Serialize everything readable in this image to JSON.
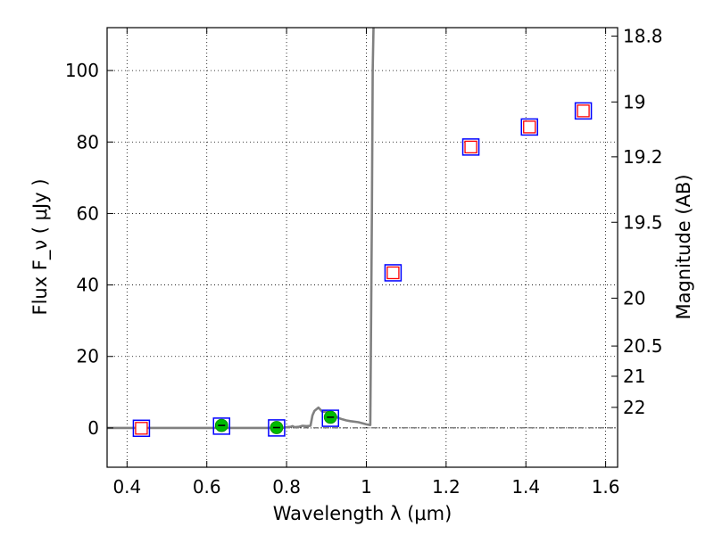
{
  "chart_data": {
    "type": "scatter",
    "title": "",
    "xlabel": "Wavelength  λ (μm)",
    "ylabel": "Flux  F_ν  ( μJy )",
    "y2label": "Magnitude (AB)",
    "xlim": [
      0.35,
      1.63
    ],
    "ylim": [
      -11,
      112
    ],
    "grid": true,
    "legend": "none",
    "xticks": [
      {
        "value": 0.4,
        "label": "0.4"
      },
      {
        "value": 0.6,
        "label": "0.6"
      },
      {
        "value": 0.8,
        "label": "0.8"
      },
      {
        "value": 1.0,
        "label": "1"
      },
      {
        "value": 1.2,
        "label": "1.2"
      },
      {
        "value": 1.4,
        "label": "1.4"
      },
      {
        "value": 1.6,
        "label": "1.6"
      }
    ],
    "yticks": [
      {
        "value": 0,
        "label": "0"
      },
      {
        "value": 20,
        "label": "20"
      },
      {
        "value": 40,
        "label": "40"
      },
      {
        "value": 60,
        "label": "60"
      },
      {
        "value": 80,
        "label": "80"
      },
      {
        "value": 100,
        "label": "100"
      }
    ],
    "y2ticks": [
      {
        "value": 18.8,
        "label": "18.8"
      },
      {
        "value": 19.0,
        "label": "19"
      },
      {
        "value": 19.2,
        "label": "19.2"
      },
      {
        "value": 19.5,
        "label": "19.5"
      },
      {
        "value": 20.0,
        "label": "20"
      },
      {
        "value": 20.5,
        "label": "20.5"
      },
      {
        "value": 21.0,
        "label": "21"
      },
      {
        "value": 22.0,
        "label": "22"
      }
    ],
    "model_spectrum": {
      "color": "#808080",
      "x": [
        0.35,
        0.7,
        0.79,
        0.8,
        0.81,
        0.815,
        0.82,
        0.83,
        0.84,
        0.85,
        0.86,
        0.865,
        0.87,
        0.88,
        0.89,
        0.9,
        0.91,
        0.92,
        0.93,
        0.94,
        0.95,
        0.96,
        0.98,
        1.0,
        1.01,
        1.012,
        1.014,
        1.016,
        1.018
      ],
      "y": [
        0.0,
        0.0,
        0.0,
        0.2,
        0.3,
        0.5,
        0.2,
        0.3,
        0.6,
        0.5,
        0.6,
        3.5,
        4.8,
        5.7,
        4.5,
        4.6,
        4.0,
        3.4,
        2.8,
        2.4,
        2.1,
        1.9,
        1.6,
        1.0,
        0.8,
        30.0,
        60.0,
        100.0,
        112.0
      ]
    },
    "observed_points": {
      "marker": "green circle with error bar",
      "color": "#00bb00",
      "x": [
        0.637,
        0.775,
        0.91
      ],
      "y": [
        0.7,
        0.1,
        3.0
      ]
    },
    "model_bandpass_points": {
      "marker": "blue square",
      "color": "#0000ff",
      "x": [
        0.436,
        0.637,
        0.775,
        0.91,
        1.067,
        1.262,
        1.409,
        1.544
      ],
      "y": [
        -0.1,
        0.5,
        0.0,
        2.7,
        43.4,
        78.6,
        84.2,
        88.7
      ]
    },
    "upper_limit_points": {
      "marker": "red square",
      "color": "#ff0000",
      "x": [
        0.436,
        1.067,
        1.262,
        1.409,
        1.544
      ],
      "y": [
        -0.1,
        43.4,
        78.6,
        84.2,
        88.7
      ]
    }
  }
}
